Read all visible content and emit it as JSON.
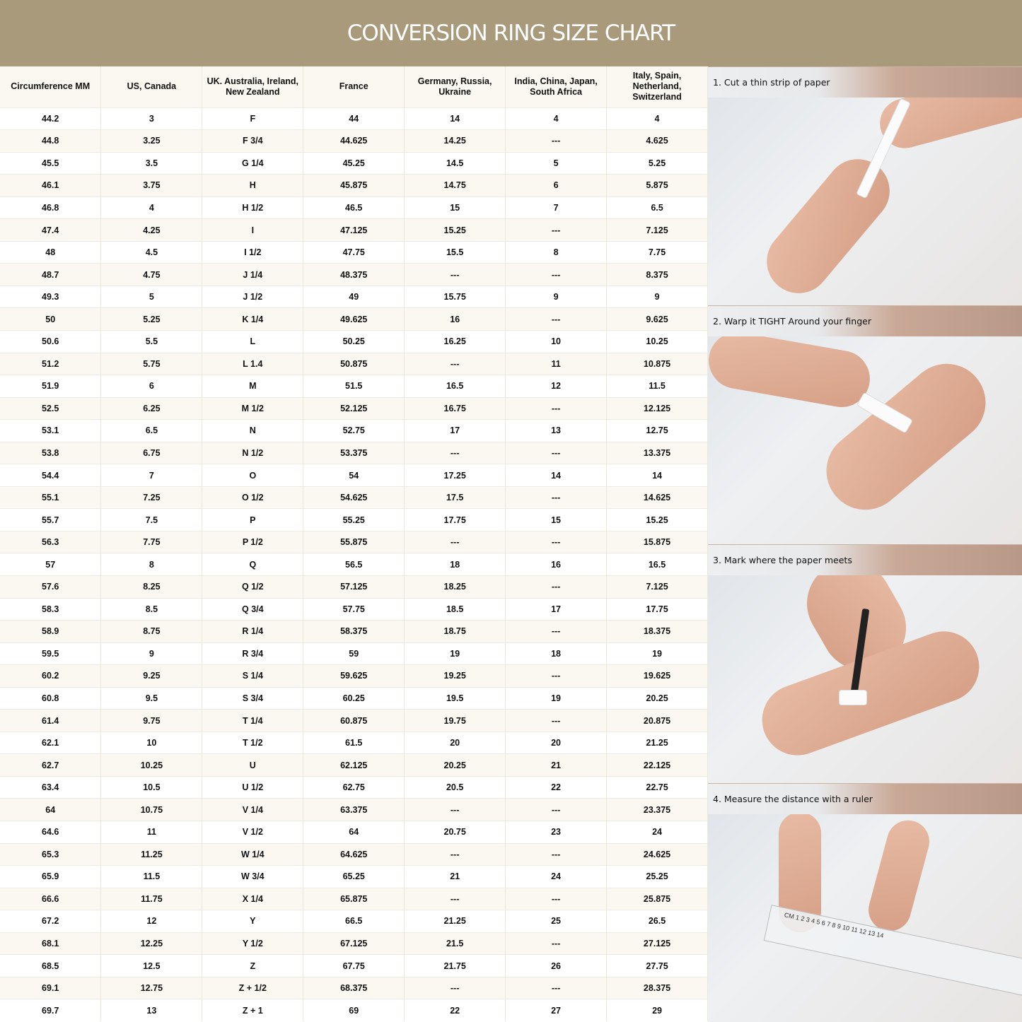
{
  "title": "CONVERSION RING SIZE CHART",
  "columns": [
    "Circumference MM",
    "US, Canada",
    "UK. Australia, Ireland, New Zealand",
    "France",
    "Germany, Russia, Ukraine",
    "India, China, Japan, South Africa",
    "Italy, Spain, Netherland, Switzerland"
  ],
  "rows": [
    [
      "44.2",
      "3",
      "F",
      "44",
      "14",
      "4",
      "4"
    ],
    [
      "44.8",
      "3.25",
      "F 3/4",
      "44.625",
      "14.25",
      "---",
      "4.625"
    ],
    [
      "45.5",
      "3.5",
      "G 1/4",
      "45.25",
      "14.5",
      "5",
      "5.25"
    ],
    [
      "46.1",
      "3.75",
      "H",
      "45.875",
      "14.75",
      "6",
      "5.875"
    ],
    [
      "46.8",
      "4",
      "H 1/2",
      "46.5",
      "15",
      "7",
      "6.5"
    ],
    [
      "47.4",
      "4.25",
      "I",
      "47.125",
      "15.25",
      "---",
      "7.125"
    ],
    [
      "48",
      "4.5",
      "I 1/2",
      "47.75",
      "15.5",
      "8",
      "7.75"
    ],
    [
      "48.7",
      "4.75",
      "J 1/4",
      "48.375",
      "---",
      "---",
      "8.375"
    ],
    [
      "49.3",
      "5",
      "J 1/2",
      "49",
      "15.75",
      "9",
      "9"
    ],
    [
      "50",
      "5.25",
      "K 1/4",
      "49.625",
      "16",
      "---",
      "9.625"
    ],
    [
      "50.6",
      "5.5",
      "L",
      "50.25",
      "16.25",
      "10",
      "10.25"
    ],
    [
      "51.2",
      "5.75",
      "L 1.4",
      "50.875",
      "---",
      "11",
      "10.875"
    ],
    [
      "51.9",
      "6",
      "M",
      "51.5",
      "16.5",
      "12",
      "11.5"
    ],
    [
      "52.5",
      "6.25",
      "M 1/2",
      "52.125",
      "16.75",
      "---",
      "12.125"
    ],
    [
      "53.1",
      "6.5",
      "N",
      "52.75",
      "17",
      "13",
      "12.75"
    ],
    [
      "53.8",
      "6.75",
      "N 1/2",
      "53.375",
      "---",
      "---",
      "13.375"
    ],
    [
      "54.4",
      "7",
      "O",
      "54",
      "17.25",
      "14",
      "14"
    ],
    [
      "55.1",
      "7.25",
      "O 1/2",
      "54.625",
      "17.5",
      "---",
      "14.625"
    ],
    [
      "55.7",
      "7.5",
      "P",
      "55.25",
      "17.75",
      "15",
      "15.25"
    ],
    [
      "56.3",
      "7.75",
      "P 1/2",
      "55.875",
      "---",
      "---",
      "15.875"
    ],
    [
      "57",
      "8",
      "Q",
      "56.5",
      "18",
      "16",
      "16.5"
    ],
    [
      "57.6",
      "8.25",
      "Q 1/2",
      "57.125",
      "18.25",
      "---",
      "7.125"
    ],
    [
      "58.3",
      "8.5",
      "Q 3/4",
      "57.75",
      "18.5",
      "17",
      "17.75"
    ],
    [
      "58.9",
      "8.75",
      "R 1/4",
      "58.375",
      "18.75",
      "---",
      "18.375"
    ],
    [
      "59.5",
      "9",
      "R 3/4",
      "59",
      "19",
      "18",
      "19"
    ],
    [
      "60.2",
      "9.25",
      "S 1/4",
      "59.625",
      "19.25",
      "---",
      "19.625"
    ],
    [
      "60.8",
      "9.5",
      "S 3/4",
      "60.25",
      "19.5",
      "19",
      "20.25"
    ],
    [
      "61.4",
      "9.75",
      "T 1/4",
      "60.875",
      "19.75",
      "---",
      "20.875"
    ],
    [
      "62.1",
      "10",
      "T 1/2",
      "61.5",
      "20",
      "20",
      "21.25"
    ],
    [
      "62.7",
      "10.25",
      "U",
      "62.125",
      "20.25",
      "21",
      "22.125"
    ],
    [
      "63.4",
      "10.5",
      "U 1/2",
      "62.75",
      "20.5",
      "22",
      "22.75"
    ],
    [
      "64",
      "10.75",
      "V 1/4",
      "63.375",
      "---",
      "---",
      "23.375"
    ],
    [
      "64.6",
      "11",
      "V 1/2",
      "64",
      "20.75",
      "23",
      "24"
    ],
    [
      "65.3",
      "11.25",
      "W 1/4",
      "64.625",
      "---",
      "---",
      "24.625"
    ],
    [
      "65.9",
      "11.5",
      "W 3/4",
      "65.25",
      "21",
      "24",
      "25.25"
    ],
    [
      "66.6",
      "11.75",
      "X 1/4",
      "65.875",
      "---",
      "---",
      "25.875"
    ],
    [
      "67.2",
      "12",
      "Y",
      "66.5",
      "21.25",
      "25",
      "26.5"
    ],
    [
      "68.1",
      "12.25",
      "Y 1/2",
      "67.125",
      "21.5",
      "---",
      "27.125"
    ],
    [
      "68.5",
      "12.5",
      "Z",
      "67.75",
      "21.75",
      "26",
      "27.75"
    ],
    [
      "69.1",
      "12.75",
      "Z + 1/2",
      "68.375",
      "---",
      "---",
      "28.375"
    ],
    [
      "69.7",
      "13",
      "Z + 1",
      "69",
      "22",
      "27",
      "29"
    ]
  ],
  "steps": [
    "1. Cut a thin strip of paper",
    "2. Warp it TIGHT Around your finger",
    "3. Mark where the paper meets",
    "4. Measure the distance with a ruler"
  ],
  "ruler_label": "CM",
  "colors": {
    "banner": "#a99a7c",
    "row_alt": "#faf8f1"
  }
}
